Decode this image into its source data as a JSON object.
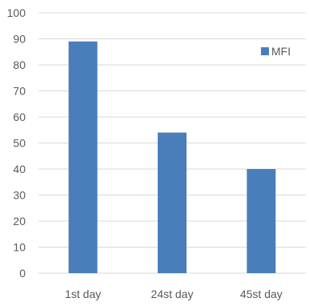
{
  "chart_data": {
    "type": "bar",
    "categories": [
      "1st day",
      "24st day",
      "45st day"
    ],
    "series": [
      {
        "name": "MFI",
        "values": [
          89,
          54,
          40
        ]
      }
    ],
    "ylim": [
      0,
      100
    ],
    "yticks": [
      0,
      10,
      20,
      30,
      40,
      50,
      60,
      70,
      80,
      90,
      100
    ],
    "grid": true,
    "legend_position": "top-right",
    "colors": {
      "bar": "#4a7ebb",
      "grid": "#d9d9d9",
      "text": "#595959"
    }
  }
}
